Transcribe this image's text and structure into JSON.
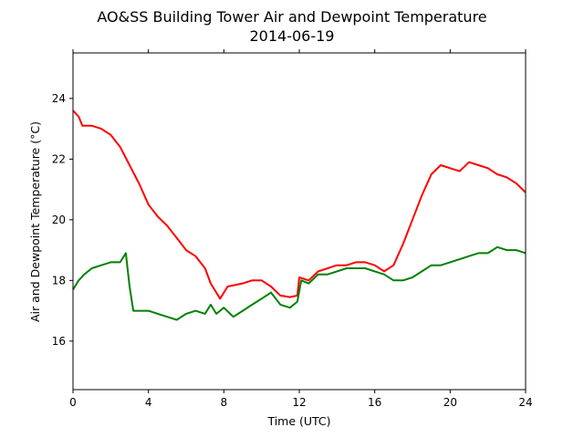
{
  "chart_data": {
    "type": "line",
    "title": "AO&SS Building Tower Air and Dewpoint Temperature",
    "subtitle": "2014-06-19",
    "xlabel": "Time (UTC)",
    "ylabel": "Air and Dewpoint Temperature (°C)",
    "xlim": [
      0,
      24
    ],
    "ylim": [
      14.4,
      25.5
    ],
    "x_ticks": [
      0,
      4,
      8,
      12,
      16,
      20,
      24
    ],
    "y_ticks": [
      16,
      18,
      20,
      22,
      24
    ],
    "grid": false,
    "legend": "none",
    "colors": {
      "air": "#ff0000",
      "dewpoint": "#008000"
    },
    "series": [
      {
        "key": "air",
        "points": [
          [
            0.0,
            23.6
          ],
          [
            0.3,
            23.4
          ],
          [
            0.5,
            23.1
          ],
          [
            1.0,
            23.1
          ],
          [
            1.5,
            23.0
          ],
          [
            2.0,
            22.8
          ],
          [
            2.5,
            22.4
          ],
          [
            3.0,
            21.8
          ],
          [
            3.5,
            21.2
          ],
          [
            4.0,
            20.5
          ],
          [
            4.5,
            20.1
          ],
          [
            5.0,
            19.8
          ],
          [
            5.5,
            19.4
          ],
          [
            6.0,
            19.0
          ],
          [
            6.5,
            18.8
          ],
          [
            7.0,
            18.4
          ],
          [
            7.3,
            17.9
          ],
          [
            7.6,
            17.6
          ],
          [
            7.8,
            17.4
          ],
          [
            8.2,
            17.8
          ],
          [
            9.0,
            17.9
          ],
          [
            9.5,
            18.0
          ],
          [
            10.0,
            18.0
          ],
          [
            10.5,
            17.8
          ],
          [
            11.0,
            17.5
          ],
          [
            11.5,
            17.45
          ],
          [
            11.9,
            17.5
          ],
          [
            12.0,
            18.1
          ],
          [
            12.5,
            18.0
          ],
          [
            13.0,
            18.3
          ],
          [
            13.5,
            18.4
          ],
          [
            14.0,
            18.5
          ],
          [
            14.5,
            18.5
          ],
          [
            15.0,
            18.6
          ],
          [
            15.5,
            18.6
          ],
          [
            16.0,
            18.5
          ],
          [
            16.5,
            18.3
          ],
          [
            17.0,
            18.5
          ],
          [
            17.5,
            19.2
          ],
          [
            18.0,
            20.0
          ],
          [
            18.5,
            20.8
          ],
          [
            19.0,
            21.5
          ],
          [
            19.5,
            21.8
          ],
          [
            20.0,
            21.7
          ],
          [
            20.5,
            21.6
          ],
          [
            21.0,
            21.9
          ],
          [
            21.5,
            21.8
          ],
          [
            22.0,
            21.7
          ],
          [
            22.5,
            21.5
          ],
          [
            23.0,
            21.4
          ],
          [
            23.5,
            21.2
          ],
          [
            24.0,
            20.9
          ]
        ]
      },
      {
        "key": "dewpoint",
        "points": [
          [
            0.0,
            17.7
          ],
          [
            0.3,
            18.0
          ],
          [
            0.6,
            18.2
          ],
          [
            1.0,
            18.4
          ],
          [
            1.5,
            18.5
          ],
          [
            2.0,
            18.6
          ],
          [
            2.5,
            18.6
          ],
          [
            2.8,
            18.9
          ],
          [
            3.0,
            17.8
          ],
          [
            3.2,
            17.0
          ],
          [
            3.5,
            17.0
          ],
          [
            4.0,
            17.0
          ],
          [
            4.5,
            16.9
          ],
          [
            5.0,
            16.8
          ],
          [
            5.5,
            16.7
          ],
          [
            6.0,
            16.9
          ],
          [
            6.5,
            17.0
          ],
          [
            7.0,
            16.9
          ],
          [
            7.3,
            17.2
          ],
          [
            7.6,
            16.9
          ],
          [
            8.0,
            17.1
          ],
          [
            8.5,
            16.8
          ],
          [
            9.0,
            17.0
          ],
          [
            9.5,
            17.2
          ],
          [
            10.0,
            17.4
          ],
          [
            10.5,
            17.6
          ],
          [
            11.0,
            17.2
          ],
          [
            11.5,
            17.1
          ],
          [
            11.9,
            17.3
          ],
          [
            12.1,
            18.0
          ],
          [
            12.5,
            17.9
          ],
          [
            13.0,
            18.2
          ],
          [
            13.5,
            18.2
          ],
          [
            14.0,
            18.3
          ],
          [
            14.5,
            18.4
          ],
          [
            15.0,
            18.4
          ],
          [
            15.5,
            18.4
          ],
          [
            16.0,
            18.3
          ],
          [
            16.5,
            18.2
          ],
          [
            17.0,
            18.0
          ],
          [
            17.5,
            18.0
          ],
          [
            18.0,
            18.1
          ],
          [
            18.5,
            18.3
          ],
          [
            19.0,
            18.5
          ],
          [
            19.5,
            18.5
          ],
          [
            20.0,
            18.6
          ],
          [
            20.5,
            18.7
          ],
          [
            21.0,
            18.8
          ],
          [
            21.5,
            18.9
          ],
          [
            22.0,
            18.9
          ],
          [
            22.5,
            19.1
          ],
          [
            23.0,
            19.0
          ],
          [
            23.5,
            19.0
          ],
          [
            24.0,
            18.9
          ]
        ]
      }
    ]
  }
}
